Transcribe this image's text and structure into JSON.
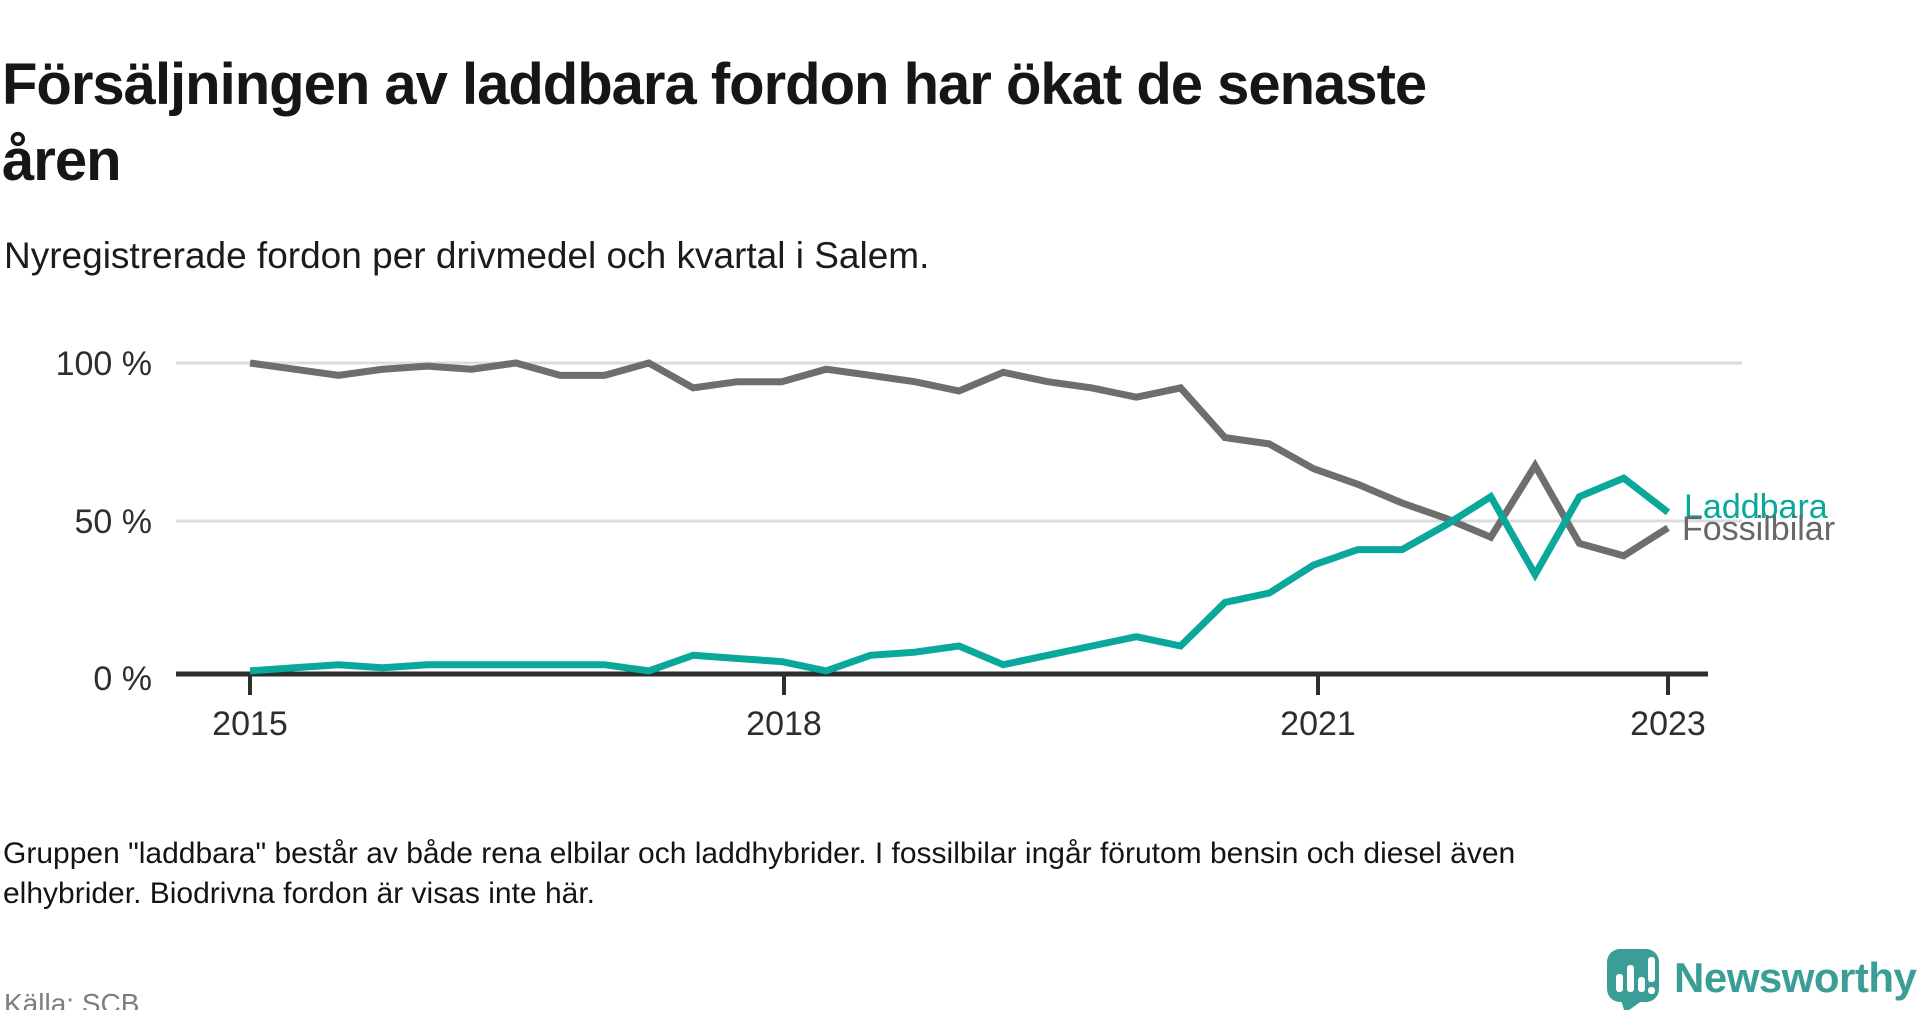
{
  "title": {
    "full": "Försäljningen av laddbara fordon har ökat de senaste åren",
    "lines": [
      "Försäljningen av laddbara fordon har ökat de senaste",
      "åren"
    ]
  },
  "subtitle": "Nyregistrerade fordon per drivmedel och kvartal i Salem.",
  "footnote": {
    "full": "Gruppen \"laddbara\" består av både rena elbilar och laddhybrider. I fossilbilar ingår förutom bensin och diesel även elhybrider. Biodrivna fordon är visas inte här.",
    "lines": [
      "Gruppen \"laddbara\" består av både rena elbilar och laddhybrider. I fossilbilar ingår förutom bensin och diesel även",
      "elhybrider. Biodrivna fordon är visas inte här."
    ]
  },
  "source": "Källa: SCB",
  "logo": {
    "text": "Newsworthy",
    "icon": "newsworthy-speech-bubble-chart-icon",
    "color": "#3b9e96"
  },
  "colors": {
    "laddbara": "#0aa79b",
    "fossilbilar": "#6e6e6e",
    "fossilbilar_label": "#676767",
    "grid": "#dcdcdc",
    "axis": "#2e2e2e",
    "title_text": "#161616",
    "footnote_text": "#141414",
    "source_text": "#7d7d7d"
  },
  "chart_data": {
    "type": "line",
    "title": "Försäljningen av laddbara fordon har ökat de senaste åren",
    "subtitle": "Nyregistrerade fordon per drivmedel och kvartal i Salem.",
    "unit": "%",
    "ylim": [
      0,
      100
    ],
    "grid": "horizontal",
    "legend_position": "end-of-line-labels",
    "y_tick_labels": [
      "100 %",
      "50 %",
      "0 %"
    ],
    "x_tick_labels": [
      "2015",
      "2018",
      "2021",
      "2023"
    ],
    "x_quarters": [
      "2015K1",
      "2015K2",
      "2015K3",
      "2015K4",
      "2016K1",
      "2016K2",
      "2016K3",
      "2016K4",
      "2017K1",
      "2017K2",
      "2017K3",
      "2017K4",
      "2018K1",
      "2018K2",
      "2018K3",
      "2018K4",
      "2019K1",
      "2019K2",
      "2019K3",
      "2019K4",
      "2020K1",
      "2020K2",
      "2020K3",
      "2020K4",
      "2021K1",
      "2021K2",
      "2021K3",
      "2021K4",
      "2022K1",
      "2022K2",
      "2022K3",
      "2022K4",
      "2023K1"
    ],
    "series": [
      {
        "name": "Fossilbilar",
        "color": "#6e6e6e",
        "label_color": "#676767",
        "values": [
          100,
          98,
          96,
          98,
          99,
          98,
          100,
          96,
          96,
          100,
          92,
          94,
          94,
          98,
          96,
          94,
          91,
          97,
          94,
          92,
          89,
          92,
          76,
          74,
          66,
          61,
          55,
          50,
          44,
          67,
          42,
          38,
          47
        ]
      },
      {
        "name": "Laddbara",
        "color": "#0aa79b",
        "label_color": "#0aa79b",
        "values": [
          1,
          2,
          3,
          2,
          3,
          3,
          3,
          3,
          3,
          1,
          6,
          5,
          4,
          1,
          6,
          7,
          9,
          3,
          6,
          9,
          12,
          9,
          23,
          26,
          35,
          40,
          40,
          48,
          57,
          32,
          57,
          63,
          52
        ]
      }
    ]
  }
}
